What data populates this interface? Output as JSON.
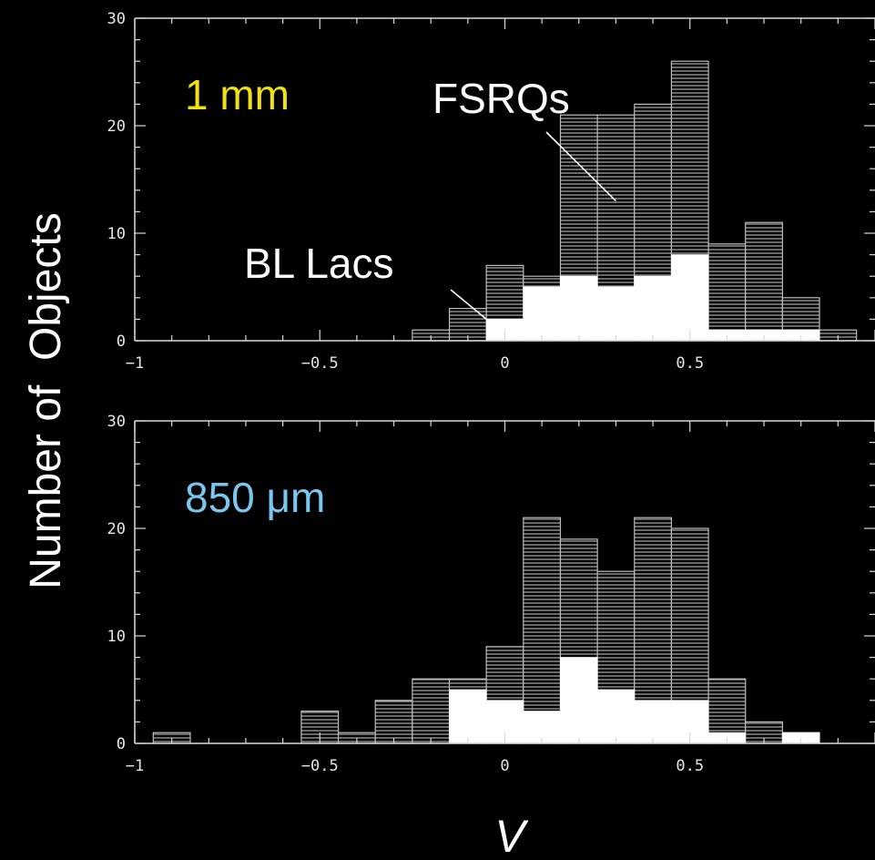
{
  "colors": {
    "background": "#000000",
    "axes": "#d9d9d9",
    "hatch": "#bdbdbd",
    "bl_fill": "#ffffff",
    "label_1mm": "#f2e20a",
    "label_850um": "#79c6ee"
  },
  "ylabel": "Number of  Objects",
  "xlabel": "V",
  "chart_data": [
    {
      "type": "bar",
      "panel_label": "1 mm",
      "xlim": [
        -1,
        1
      ],
      "ylim": [
        0,
        30
      ],
      "xticks": [
        -1,
        -0.5,
        0,
        0.5
      ],
      "xtick_labels": [
        "−1",
        "−0.5",
        "0",
        "0.5"
      ],
      "yticks": [
        0,
        10,
        20,
        30
      ],
      "ytick_labels": [
        "0",
        "10",
        "20",
        "30"
      ],
      "bin_edges": [
        -0.25,
        -0.15,
        -0.05,
        0.05,
        0.15,
        0.25,
        0.35,
        0.45,
        0.55,
        0.65,
        0.75,
        0.85,
        0.95
      ],
      "series": [
        {
          "name": "FSRQs",
          "values": [
            1,
            3,
            7,
            6,
            21,
            21,
            22,
            26,
            9,
            11,
            4,
            1
          ]
        },
        {
          "name": "BL Lacs",
          "values": [
            0,
            0,
            2,
            5,
            6,
            5,
            6,
            8,
            1,
            1,
            1,
            0
          ]
        }
      ],
      "annotations": [
        {
          "text": "FSRQs",
          "points_to_x": 0.3,
          "points_to_y": 13
        },
        {
          "text": "BL Lacs",
          "points_to_x": -0.05,
          "points_to_y": 2
        }
      ]
    },
    {
      "type": "bar",
      "panel_label": "850 μm",
      "xlim": [
        -1,
        1
      ],
      "ylim": [
        0,
        30
      ],
      "xticks": [
        -1,
        -0.5,
        0,
        0.5
      ],
      "xtick_labels": [
        "−1",
        "−0.5",
        "0",
        "0.5"
      ],
      "yticks": [
        0,
        10,
        20,
        30
      ],
      "ytick_labels": [
        "0",
        "10",
        "20",
        "30"
      ],
      "bin_edges": [
        -0.95,
        -0.85,
        -0.75,
        -0.65,
        -0.55,
        -0.45,
        -0.35,
        -0.25,
        -0.15,
        -0.05,
        0.05,
        0.15,
        0.25,
        0.35,
        0.45,
        0.55,
        0.65,
        0.75,
        0.85
      ],
      "series": [
        {
          "name": "FSRQs",
          "values": [
            1,
            0,
            0,
            0,
            3,
            1,
            4,
            6,
            6,
            9,
            21,
            19,
            16,
            21,
            20,
            6,
            2,
            1
          ]
        },
        {
          "name": "BL Lacs",
          "values": [
            0,
            0,
            0,
            0,
            0,
            0,
            0,
            0,
            5,
            4,
            3,
            8,
            5,
            4,
            4,
            1,
            0,
            1
          ]
        }
      ]
    }
  ]
}
